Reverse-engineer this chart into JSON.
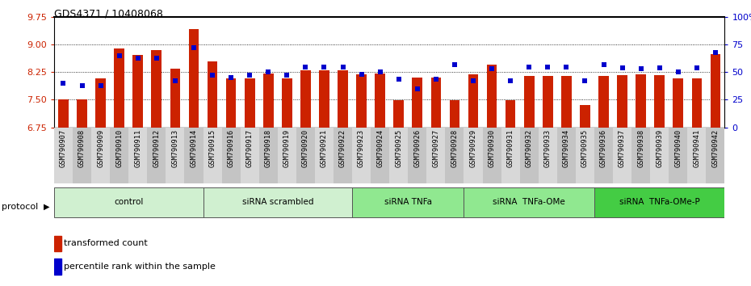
{
  "title": "GDS4371 / 10408068",
  "samples": [
    "GSM790907",
    "GSM790908",
    "GSM790909",
    "GSM790910",
    "GSM790911",
    "GSM790912",
    "GSM790913",
    "GSM790914",
    "GSM790915",
    "GSM790916",
    "GSM790917",
    "GSM790918",
    "GSM790919",
    "GSM790920",
    "GSM790921",
    "GSM790922",
    "GSM790923",
    "GSM790924",
    "GSM790925",
    "GSM790926",
    "GSM790927",
    "GSM790928",
    "GSM790929",
    "GSM790930",
    "GSM790931",
    "GSM790932",
    "GSM790933",
    "GSM790934",
    "GSM790935",
    "GSM790936",
    "GSM790937",
    "GSM790938",
    "GSM790939",
    "GSM790940",
    "GSM790941",
    "GSM790942"
  ],
  "bar_values": [
    7.5,
    7.52,
    8.08,
    8.9,
    8.72,
    8.85,
    8.35,
    9.42,
    8.55,
    8.08,
    8.08,
    8.22,
    8.08,
    8.3,
    8.3,
    8.3,
    8.2,
    8.22,
    7.48,
    8.1,
    8.1,
    7.48,
    8.2,
    8.45,
    7.48,
    8.15,
    8.15,
    8.15,
    7.35,
    8.15,
    8.18,
    8.2,
    8.18,
    8.08,
    8.08,
    8.75
  ],
  "percentile_values": [
    40,
    38,
    38,
    65,
    63,
    63,
    42,
    72,
    47,
    45,
    47,
    50,
    47,
    55,
    55,
    55,
    48,
    50,
    44,
    35,
    44,
    57,
    42,
    53,
    42,
    55,
    55,
    55,
    42,
    57,
    54,
    53,
    54,
    50,
    54,
    68
  ],
  "groups": [
    {
      "label": "control",
      "start": 0,
      "end": 8,
      "color": "#d0f0d0"
    },
    {
      "label": "siRNA scrambled",
      "start": 8,
      "end": 16,
      "color": "#d0f0d0"
    },
    {
      "label": "siRNA TNFa",
      "start": 16,
      "end": 22,
      "color": "#90e890"
    },
    {
      "label": "siRNA  TNFa-OMe",
      "start": 22,
      "end": 29,
      "color": "#90e890"
    },
    {
      "label": "siRNA  TNFa-OMe-P",
      "start": 29,
      "end": 36,
      "color": "#44cc44"
    }
  ],
  "ylim_left": [
    6.75,
    9.75
  ],
  "ylim_right": [
    0,
    100
  ],
  "yticks_left": [
    6.75,
    7.5,
    8.25,
    9.0,
    9.75
  ],
  "yticks_right": [
    0,
    25,
    50,
    75,
    100
  ],
  "ytick_labels_right": [
    "0",
    "25",
    "50",
    "75",
    "100%"
  ],
  "bar_color": "#cc2200",
  "dot_color": "#0000cc",
  "tick_label_bg_even": "#d8d8d8",
  "tick_label_bg_odd": "#c4c4c4"
}
